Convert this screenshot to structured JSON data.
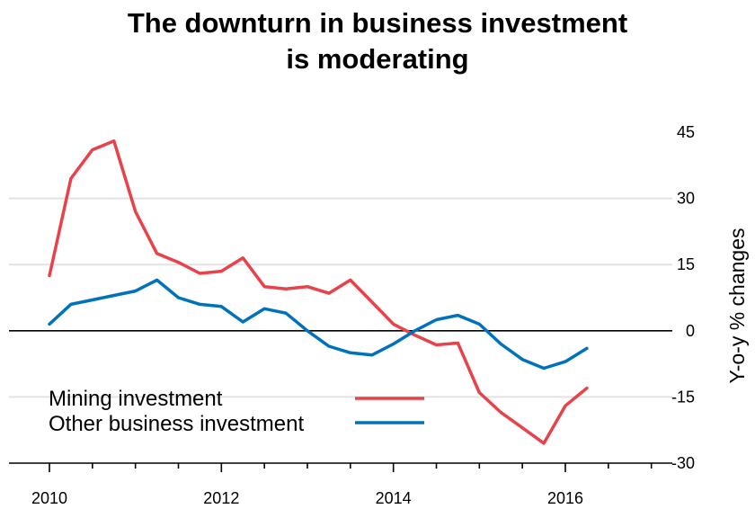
{
  "chart_data": {
    "type": "line",
    "title_lines": [
      "The downturn in business investment",
      "is moderating"
    ],
    "xlabel": "",
    "ylabel": "Y-o-y % changes",
    "xlim": [
      2010,
      2017.2
    ],
    "ylim": [
      -30,
      45
    ],
    "x_ticks": [
      2010,
      2012,
      2014,
      2016
    ],
    "y_ticks": [
      45,
      30,
      15,
      0,
      -15,
      -30
    ],
    "grid": "horizontal",
    "legend": "bottom-left",
    "x": [
      2010.0,
      2010.25,
      2010.5,
      2010.75,
      2011.0,
      2011.25,
      2011.5,
      2011.75,
      2012.0,
      2012.25,
      2012.5,
      2012.75,
      2013.0,
      2013.25,
      2013.5,
      2013.75,
      2014.0,
      2014.25,
      2014.5,
      2014.75,
      2015.0,
      2015.25,
      2015.5,
      2015.75,
      2016.0,
      2016.25
    ],
    "series": [
      {
        "name": "Mining investment",
        "color": "#e8424a",
        "values": [
          12.5,
          34.5,
          41,
          43,
          27,
          17.5,
          15.5,
          13,
          13.5,
          16.5,
          10,
          9.5,
          10,
          8.5,
          11.5,
          6.5,
          1.5,
          -1,
          -3.2,
          -2.8,
          -14,
          -18.5,
          -22,
          -25.5,
          -17,
          -13
        ]
      },
      {
        "name": "Other business investment",
        "color": "#0072bc",
        "values": [
          1.5,
          6,
          7,
          8,
          9,
          11.5,
          7.5,
          6,
          5.5,
          2,
          5,
          4,
          0,
          -3.5,
          -5,
          -5.5,
          -3,
          0,
          2.5,
          3.5,
          1.5,
          -3,
          -6.5,
          -8.5,
          -7,
          -4
        ]
      }
    ]
  }
}
